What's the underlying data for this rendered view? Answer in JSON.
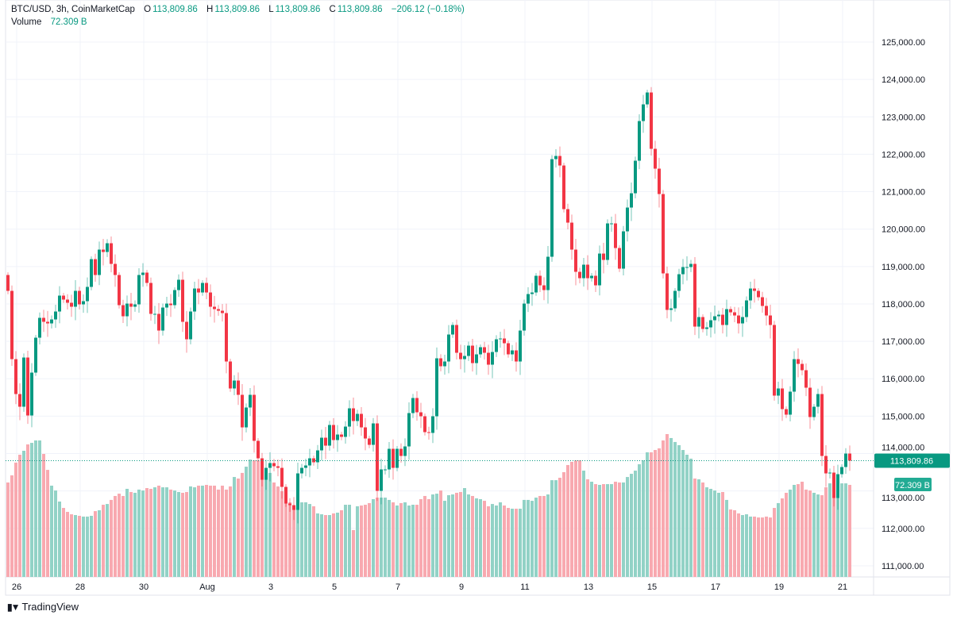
{
  "header": {
    "symbol": "BTC/USD, 3h, CoinMarketCap",
    "open_label": "O",
    "open": "113,809.86",
    "high_label": "H",
    "high": "113,809.86",
    "low_label": "L",
    "low": "113,809.86",
    "close_label": "C",
    "close": "113,809.86",
    "change": "−206.12 (−0.18%)",
    "volume_label": "Volume",
    "volume": "72.309 B"
  },
  "brand": {
    "logo_text": "TV",
    "name": "TradingView"
  },
  "colors": {
    "up": "#089981",
    "down": "#f23645",
    "up_volume": "#92d2c6",
    "down_volume": "#f8a9b0",
    "grid": "#f0f3fa",
    "text": "#131722"
  },
  "chart_data": {
    "type": "candlestick",
    "title": "BTC/USD, 3h, CoinMarketCap",
    "interval_hours": 3,
    "first_candle_day_offset": -0.275,
    "first_open": 118773,
    "close": [
      118349,
      116524,
      115591,
      115252,
      116567,
      115018,
      116164,
      117097,
      117628,
      117522,
      117479,
      117585,
      117797,
      118222,
      118116,
      118031,
      117925,
      118349,
      117988,
      118073,
      118455,
      119197,
      118773,
      119452,
      119388,
      119622,
      119070,
      118773,
      117967,
      117670,
      118009,
      117925,
      117988,
      118773,
      118837,
      118561,
      117734,
      117734,
      117288,
      117903,
      118009,
      117967,
      118370,
      118646,
      117522,
      117055,
      117797,
      118412,
      118306,
      118561,
      118306,
      117925,
      117861,
      117818,
      117755,
      116461,
      115740,
      115952,
      115570,
      114700,
      115231,
      115570,
      114340,
      113873,
      113300,
      113618,
      113746,
      113661,
      113618,
      113109,
      112664,
      112621,
      112494,
      113470,
      113618,
      113682,
      113873,
      113767,
      114085,
      114424,
      114212,
      114764,
      114361,
      114509,
      114446,
      114721,
      115209,
      114870,
      115061,
      114700,
      114403,
      114233,
      114806,
      113003,
      113576,
      113576,
      114127,
      113618,
      114127,
      113936,
      114191,
      115082,
      115485,
      115103,
      114997,
      114573,
      114552,
      114997,
      116546,
      116334,
      116461,
      117182,
      117437,
      116694,
      116524,
      116609,
      116885,
      116418,
      116652,
      116843,
      116694,
      116376,
      116715,
      117055,
      117076,
      116949,
      116652,
      116758,
      116461,
      117288,
      118009,
      118264,
      118306,
      118752,
      118497,
      118370,
      119261,
      121870,
      121955,
      121700,
      120534,
      120173,
      119452,
      118858,
      118688,
      119049,
      118688,
      118752,
      118497,
      119346,
      119176,
      120152,
      120152,
      119494,
      118943,
      119940,
      120576,
      120958,
      121828,
      122888,
      123334,
      123652,
      122146,
      121616,
      120937,
      118816,
      117840,
      117882,
      118349,
      118794,
      118985,
      118985,
      119070,
      117394,
      117649,
      117331,
      117373,
      117564,
      117670,
      117712,
      117437,
      117861,
      117776,
      117691,
      117479,
      117649,
      118094,
      118412,
      118349,
      118179,
      117946,
      117691,
      117437,
      115549,
      115740,
      115188,
      115040,
      115655,
      116524,
      116397,
      116228,
      115761,
      114976,
      115252,
      115591,
      113936,
      113470,
      113491,
      112812,
      113449,
      113640,
      114000,
      113809.86
    ],
    "volume_b": [
      74.2,
      79.8,
      89.8,
      96.0,
      99.1,
      104.1,
      105.3,
      107.2,
      107.2,
      96.6,
      84.1,
      71.7,
      67.9,
      59.2,
      54.2,
      51.1,
      49.2,
      48.6,
      48.0,
      47.4,
      47.4,
      48.0,
      51.7,
      52.4,
      56.7,
      57.3,
      60.5,
      63.6,
      65.4,
      63.6,
      69.2,
      66.7,
      66.1,
      68.6,
      67.9,
      69.8,
      69.2,
      70.4,
      71.7,
      70.4,
      70.4,
      68.6,
      67.9,
      66.7,
      66.1,
      66.7,
      71.1,
      70.4,
      71.7,
      71.7,
      72.3,
      71.7,
      71.7,
      68.6,
      71.7,
      68.6,
      71.1,
      78.5,
      77.3,
      81.7,
      86.6,
      92.2,
      91.6,
      91.6,
      91.6,
      81.7,
      81.7,
      74.2,
      71.1,
      67.3,
      62.3,
      58.6,
      56.1,
      58.6,
      58.6,
      58.6,
      57.3,
      55.5,
      49.9,
      49.2,
      48.6,
      48.6,
      49.9,
      50.5,
      52.4,
      56.7,
      56.7,
      36.8,
      55.5,
      56.1,
      56.7,
      58.0,
      61.1,
      62.3,
      62.3,
      62.3,
      60.5,
      58.6,
      56.1,
      58.0,
      58.6,
      56.1,
      56.7,
      56.7,
      61.1,
      63.6,
      61.1,
      64.8,
      65.4,
      67.9,
      59.8,
      64.2,
      64.8,
      66.1,
      66.7,
      69.8,
      64.8,
      63.6,
      61.7,
      61.1,
      59.8,
      55.5,
      57.3,
      56.1,
      58.6,
      56.1,
      54.2,
      53.6,
      53.6,
      53.6,
      60.5,
      60.5,
      59.8,
      62.3,
      63.6,
      63.6,
      64.8,
      76.0,
      76.0,
      77.9,
      82.3,
      87.9,
      90.4,
      91.6,
      91.6,
      83.5,
      76.7,
      74.8,
      72.9,
      72.3,
      72.9,
      72.9,
      72.9,
      74.8,
      74.2,
      74.2,
      78.5,
      81.0,
      83.5,
      88.5,
      91.6,
      97.9,
      97.9,
      99.7,
      101.0,
      107.2,
      112.2,
      109.1,
      106.0,
      103.5,
      99.7,
      96.0,
      92.9,
      77.3,
      76.7,
      74.2,
      70.4,
      69.2,
      67.9,
      66.1,
      66.7,
      60.5,
      53.0,
      52.4,
      49.9,
      48.6,
      49.2,
      47.4,
      47.4,
      46.7,
      46.7,
      47.4,
      46.7,
      54.2,
      58.0,
      61.7,
      66.1,
      68.6,
      72.3,
      72.9,
      74.8,
      68.6,
      67.9,
      66.1,
      64.8,
      64.2,
      70.4,
      73.5,
      74.8,
      73.5,
      73.5,
      73.5,
      72.309
    ],
    "ylim": [
      110702,
      126124
    ],
    "y_ticks": [
      {
        "value": 125000,
        "label": "125,000.00"
      },
      {
        "value": 124000,
        "label": "124,000.00"
      },
      {
        "value": 123000,
        "label": "123,000.00"
      },
      {
        "value": 122000,
        "label": "122,000.00"
      },
      {
        "value": 121000,
        "label": "121,000.00"
      },
      {
        "value": 120000,
        "label": "120,000.00"
      },
      {
        "value": 119000,
        "label": "119,000.00"
      },
      {
        "value": 118000,
        "label": "118,000.00"
      },
      {
        "value": 117000,
        "label": "117,000.00"
      },
      {
        "value": 116000,
        "label": "116,000.00"
      },
      {
        "value": 115000,
        "label": "115,000.00"
      },
      {
        "value": 114000,
        "label": "114,000.00"
      },
      {
        "value": 113000,
        "label": "113,000.00"
      },
      {
        "value": 112000,
        "label": "112,000.00"
      },
      {
        "value": 111000,
        "label": "111,000.00"
      }
    ],
    "x_ticks": [
      {
        "day": 0,
        "label": "26"
      },
      {
        "day": 2,
        "label": "28"
      },
      {
        "day": 4,
        "label": "30"
      },
      {
        "day": 6,
        "label": "Aug"
      },
      {
        "day": 8,
        "label": "3"
      },
      {
        "day": 10,
        "label": "5"
      },
      {
        "day": 12,
        "label": "7"
      },
      {
        "day": 14,
        "label": "9"
      },
      {
        "day": 16,
        "label": "11"
      },
      {
        "day": 18,
        "label": "13"
      },
      {
        "day": 20,
        "label": "15"
      },
      {
        "day": 22,
        "label": "17"
      },
      {
        "day": 24,
        "label": "19"
      },
      {
        "day": 26,
        "label": "21"
      }
    ],
    "last_price": 113809.86,
    "last_price_label": "113,809.86",
    "last_volume_label": "72.309 B"
  }
}
